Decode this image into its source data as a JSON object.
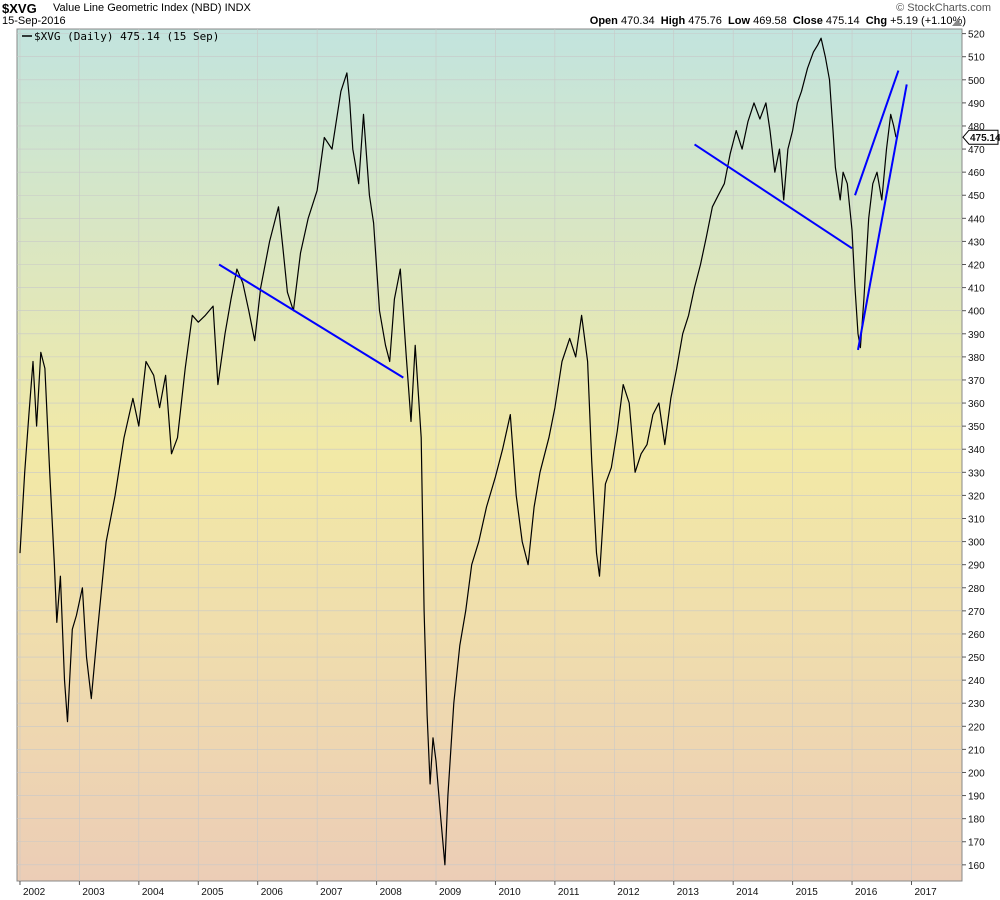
{
  "header": {
    "symbol": "$XVG",
    "name": "Value Line Geometric Index (NBD)",
    "exchange": "INDX",
    "brand": "© StockCharts.com",
    "date": "15-Sep-2016",
    "open_label": "Open",
    "open": "470.34",
    "high_label": "High",
    "high": "475.76",
    "low_label": "Low",
    "low": "469.58",
    "close_label": "Close",
    "close": "475.14",
    "chg_label": "Chg",
    "chg": "+5.19 (+1.10%)"
  },
  "legend": {
    "text": "$XVG (Daily) 475.14 (15 Sep)"
  },
  "chart_data": {
    "type": "line",
    "series": [
      {
        "name": "$XVG (Daily)",
        "color": "#000000",
        "points": [
          [
            2002.0,
            295
          ],
          [
            2002.08,
            330
          ],
          [
            2002.15,
            355
          ],
          [
            2002.22,
            378
          ],
          [
            2002.28,
            350
          ],
          [
            2002.35,
            382
          ],
          [
            2002.42,
            375
          ],
          [
            2002.5,
            330
          ],
          [
            2002.58,
            290
          ],
          [
            2002.62,
            265
          ],
          [
            2002.68,
            285
          ],
          [
            2002.75,
            240
          ],
          [
            2002.8,
            222
          ],
          [
            2002.88,
            262
          ],
          [
            2002.95,
            268
          ],
          [
            2003.05,
            280
          ],
          [
            2003.12,
            250
          ],
          [
            2003.2,
            232
          ],
          [
            2003.3,
            260
          ],
          [
            2003.45,
            300
          ],
          [
            2003.6,
            320
          ],
          [
            2003.75,
            345
          ],
          [
            2003.9,
            362
          ],
          [
            2004.0,
            350
          ],
          [
            2004.12,
            378
          ],
          [
            2004.25,
            372
          ],
          [
            2004.35,
            358
          ],
          [
            2004.45,
            372
          ],
          [
            2004.55,
            338
          ],
          [
            2004.65,
            345
          ],
          [
            2004.78,
            375
          ],
          [
            2004.9,
            398
          ],
          [
            2005.0,
            395
          ],
          [
            2005.12,
            398
          ],
          [
            2005.25,
            402
          ],
          [
            2005.33,
            368
          ],
          [
            2005.45,
            390
          ],
          [
            2005.55,
            405
          ],
          [
            2005.65,
            418
          ],
          [
            2005.75,
            412
          ],
          [
            2005.85,
            400
          ],
          [
            2005.95,
            387
          ],
          [
            2006.05,
            410
          ],
          [
            2006.2,
            430
          ],
          [
            2006.35,
            445
          ],
          [
            2006.42,
            428
          ],
          [
            2006.5,
            408
          ],
          [
            2006.6,
            400
          ],
          [
            2006.72,
            425
          ],
          [
            2006.85,
            440
          ],
          [
            2007.0,
            452
          ],
          [
            2007.12,
            475
          ],
          [
            2007.25,
            470
          ],
          [
            2007.4,
            495
          ],
          [
            2007.5,
            503
          ],
          [
            2007.55,
            490
          ],
          [
            2007.6,
            470
          ],
          [
            2007.7,
            455
          ],
          [
            2007.78,
            485
          ],
          [
            2007.88,
            450
          ],
          [
            2007.95,
            438
          ],
          [
            2008.05,
            400
          ],
          [
            2008.15,
            385
          ],
          [
            2008.22,
            378
          ],
          [
            2008.3,
            405
          ],
          [
            2008.4,
            418
          ],
          [
            2008.5,
            380
          ],
          [
            2008.58,
            352
          ],
          [
            2008.65,
            385
          ],
          [
            2008.75,
            345
          ],
          [
            2008.8,
            270
          ],
          [
            2008.85,
            225
          ],
          [
            2008.9,
            195
          ],
          [
            2008.95,
            215
          ],
          [
            2009.0,
            205
          ],
          [
            2009.08,
            180
          ],
          [
            2009.15,
            160
          ],
          [
            2009.2,
            190
          ],
          [
            2009.3,
            230
          ],
          [
            2009.4,
            255
          ],
          [
            2009.5,
            270
          ],
          [
            2009.6,
            290
          ],
          [
            2009.72,
            300
          ],
          [
            2009.85,
            315
          ],
          [
            2010.0,
            328
          ],
          [
            2010.12,
            340
          ],
          [
            2010.25,
            355
          ],
          [
            2010.35,
            320
          ],
          [
            2010.45,
            300
          ],
          [
            2010.55,
            290
          ],
          [
            2010.65,
            315
          ],
          [
            2010.75,
            330
          ],
          [
            2010.9,
            345
          ],
          [
            2011.0,
            358
          ],
          [
            2011.12,
            378
          ],
          [
            2011.25,
            388
          ],
          [
            2011.35,
            380
          ],
          [
            2011.45,
            398
          ],
          [
            2011.55,
            378
          ],
          [
            2011.62,
            335
          ],
          [
            2011.7,
            295
          ],
          [
            2011.75,
            285
          ],
          [
            2011.85,
            325
          ],
          [
            2011.95,
            332
          ],
          [
            2012.05,
            348
          ],
          [
            2012.15,
            368
          ],
          [
            2012.25,
            360
          ],
          [
            2012.35,
            330
          ],
          [
            2012.45,
            338
          ],
          [
            2012.55,
            342
          ],
          [
            2012.65,
            355
          ],
          [
            2012.75,
            360
          ],
          [
            2012.85,
            342
          ],
          [
            2012.95,
            362
          ],
          [
            2013.05,
            375
          ],
          [
            2013.15,
            390
          ],
          [
            2013.25,
            398
          ],
          [
            2013.35,
            410
          ],
          [
            2013.45,
            420
          ],
          [
            2013.55,
            432
          ],
          [
            2013.65,
            445
          ],
          [
            2013.75,
            450
          ],
          [
            2013.85,
            455
          ],
          [
            2013.95,
            468
          ],
          [
            2014.05,
            478
          ],
          [
            2014.15,
            470
          ],
          [
            2014.25,
            482
          ],
          [
            2014.35,
            490
          ],
          [
            2014.45,
            483
          ],
          [
            2014.55,
            490
          ],
          [
            2014.62,
            478
          ],
          [
            2014.7,
            460
          ],
          [
            2014.78,
            470
          ],
          [
            2014.85,
            448
          ],
          [
            2014.92,
            470
          ],
          [
            2015.0,
            478
          ],
          [
            2015.08,
            490
          ],
          [
            2015.15,
            495
          ],
          [
            2015.25,
            505
          ],
          [
            2015.35,
            512
          ],
          [
            2015.42,
            515
          ],
          [
            2015.48,
            518
          ],
          [
            2015.55,
            510
          ],
          [
            2015.62,
            500
          ],
          [
            2015.68,
            478
          ],
          [
            2015.72,
            462
          ],
          [
            2015.8,
            448
          ],
          [
            2015.85,
            460
          ],
          [
            2015.92,
            455
          ],
          [
            2016.0,
            435
          ],
          [
            2016.05,
            410
          ],
          [
            2016.1,
            390
          ],
          [
            2016.14,
            384
          ],
          [
            2016.2,
            405
          ],
          [
            2016.28,
            440
          ],
          [
            2016.35,
            455
          ],
          [
            2016.42,
            460
          ],
          [
            2016.5,
            448
          ],
          [
            2016.58,
            470
          ],
          [
            2016.65,
            485
          ],
          [
            2016.7,
            480
          ],
          [
            2016.74,
            475.14
          ]
        ]
      }
    ],
    "trendlines": [
      {
        "from": [
          2005.35,
          420
        ],
        "to": [
          2008.45,
          371
        ],
        "color": "#0000ff"
      },
      {
        "from": [
          2013.35,
          472
        ],
        "to": [
          2016.0,
          427
        ],
        "color": "#0000ff"
      },
      {
        "from": [
          2016.1,
          383
        ],
        "to": [
          2016.92,
          498
        ],
        "color": "#0000ff"
      },
      {
        "from": [
          2016.05,
          450
        ],
        "to": [
          2016.78,
          504
        ],
        "color": "#0000ff"
      }
    ],
    "x_tick_labels": [
      "2002",
      "2003",
      "2004",
      "2005",
      "2006",
      "2007",
      "2008",
      "2009",
      "2010",
      "2011",
      "2012",
      "2013",
      "2014",
      "2015",
      "2016",
      "2017"
    ],
    "y_tick_labels": [
      "520",
      "510",
      "500",
      "490",
      "480",
      "470",
      "460",
      "450",
      "440",
      "430",
      "420",
      "410",
      "400",
      "390",
      "380",
      "370",
      "360",
      "350",
      "340",
      "330",
      "320",
      "310",
      "300",
      "290",
      "280",
      "270",
      "260",
      "250",
      "240",
      "230",
      "220",
      "210",
      "200",
      "190",
      "180",
      "170",
      "160"
    ],
    "xlim": [
      2001.95,
      2017.85
    ],
    "ylim": [
      153,
      522
    ],
    "last_value_label": "475.14",
    "grid": true,
    "legend": "top-left",
    "background_gradient": [
      "#c2e4de",
      "#f2e9a6",
      "#eccdb6"
    ]
  }
}
